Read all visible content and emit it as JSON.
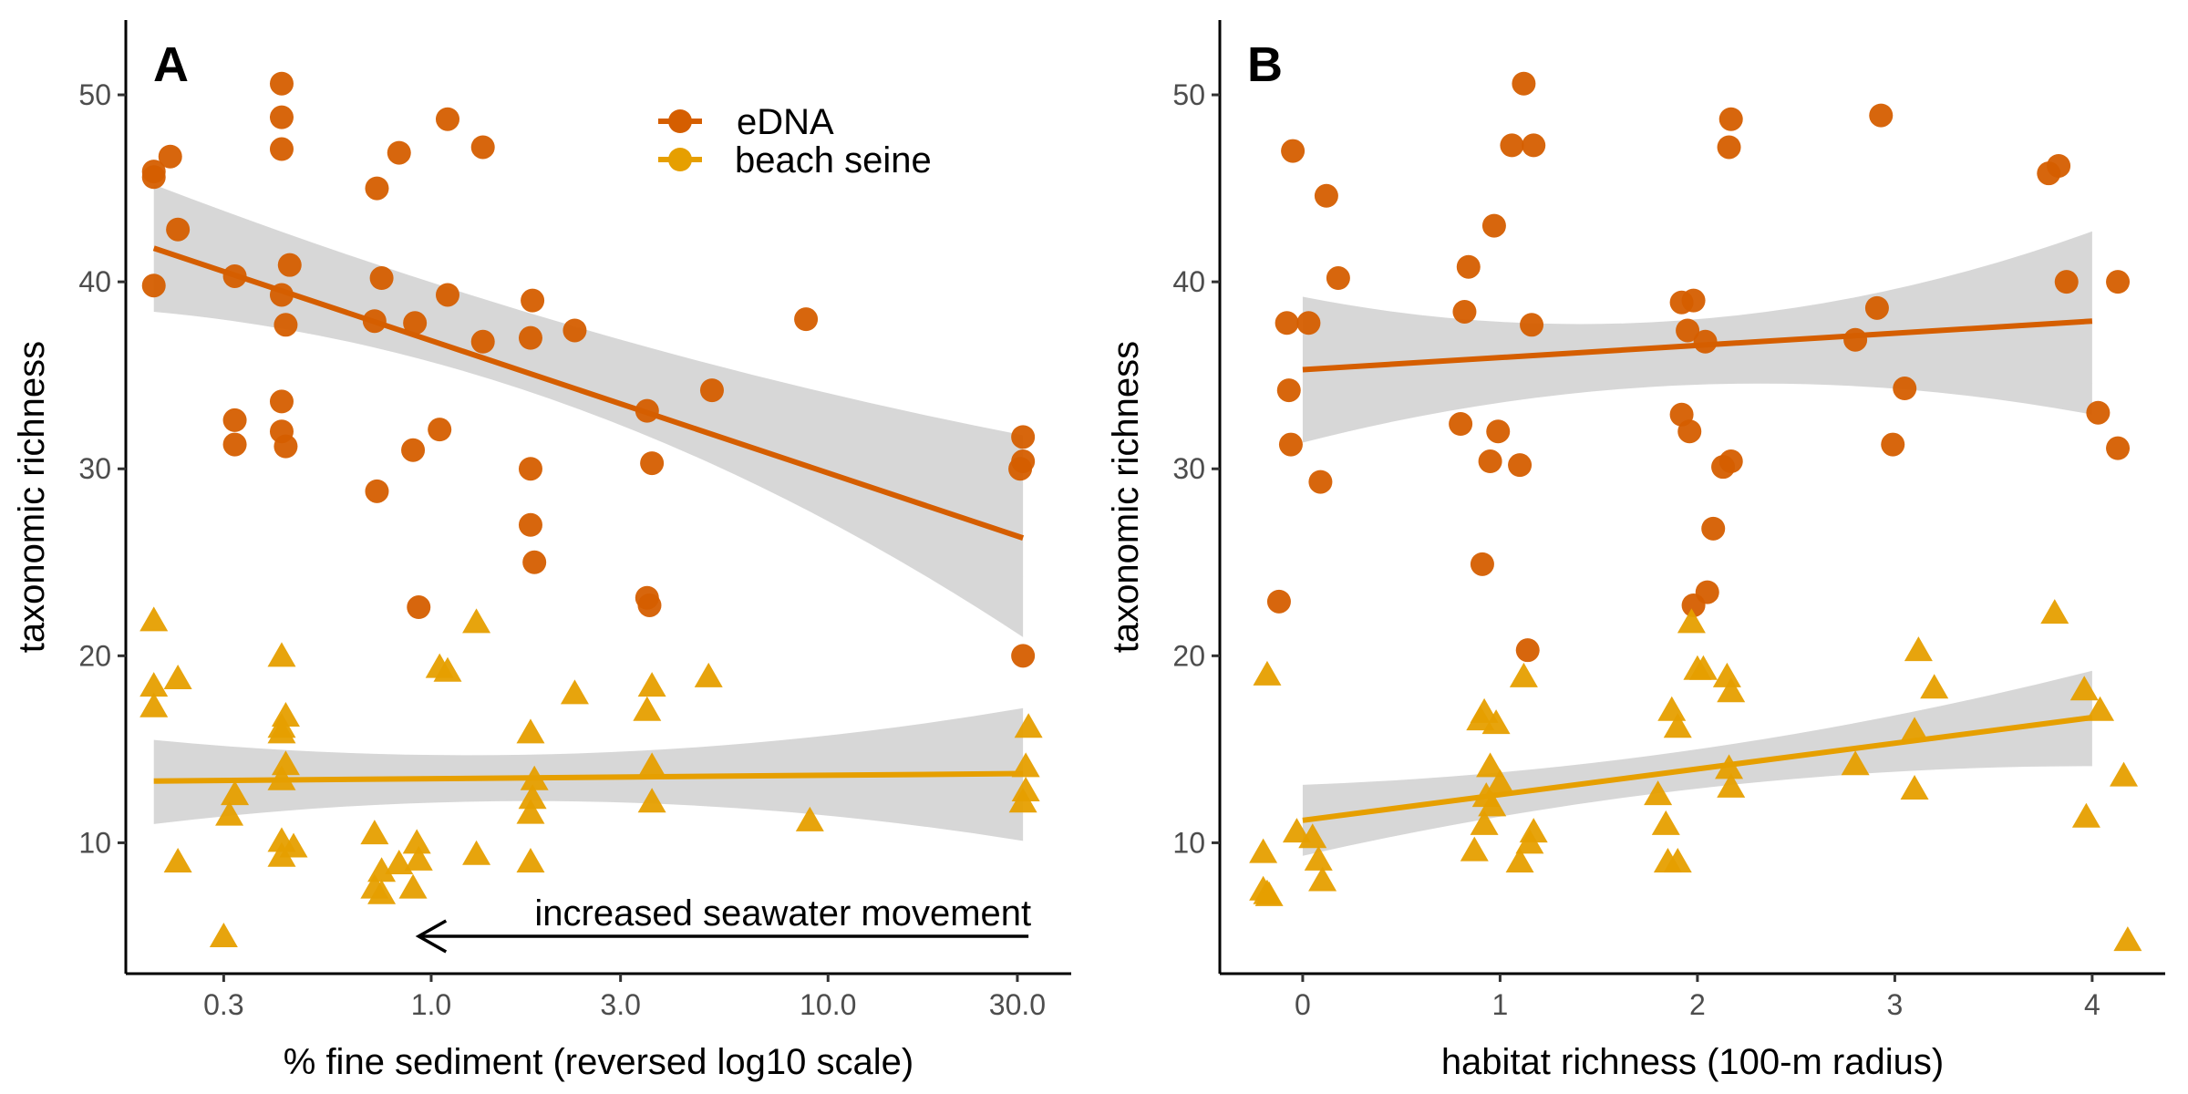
{
  "figure": {
    "colors": {
      "edna": "#D55E00",
      "seine": "#E69F00",
      "ribbon": "#BEBEBE",
      "axis": "#000000",
      "tick_text": "#4D4D4D"
    }
  },
  "legend": {
    "entries": [
      {
        "label": "eDNA",
        "series": "eDNA",
        "marker": "circle"
      },
      {
        "label": "beach seine",
        "series": "beach seine",
        "marker": "triangle"
      }
    ]
  },
  "chart_data": [
    {
      "type": "scatter",
      "panel_label": "A",
      "title": "",
      "xlabel": "% fine sediment (reversed log10 scale)",
      "ylabel": "taxonomic richness",
      "x_scale": "log10",
      "x_reversed_label": "reversed log10 scale",
      "xlim": [
        0.17,
        41
      ],
      "ylim": [
        3,
        54
      ],
      "x_ticks": [
        0.3,
        1.0,
        3.0,
        10.0,
        30.0
      ],
      "x_tick_labels": [
        "0.3",
        "1.0",
        "3.0",
        "10.0",
        "30.0"
      ],
      "y_ticks": [
        10,
        20,
        30,
        40,
        50
      ],
      "y_tick_labels": [
        "10",
        "20",
        "30",
        "40",
        "50"
      ],
      "grid": false,
      "legend_position": "top-center",
      "annotation": {
        "text": "increased seawater movement",
        "arrow_from_x": 32,
        "arrow_to_x": 0.93,
        "y": 5
      },
      "series": [
        {
          "name": "eDNA",
          "marker": "circle",
          "color": "#D55E00",
          "points": [
            [
              0.2,
              45.9
            ],
            [
              0.2,
              45.6
            ],
            [
              0.22,
              46.7
            ],
            [
              0.2,
              39.8
            ],
            [
              0.23,
              42.8
            ],
            [
              0.32,
              40.3
            ],
            [
              0.32,
              32.6
            ],
            [
              0.32,
              31.3
            ],
            [
              0.42,
              50.6
            ],
            [
              0.42,
              48.8
            ],
            [
              0.42,
              47.1
            ],
            [
              0.42,
              39.3
            ],
            [
              0.44,
              40.9
            ],
            [
              0.43,
              37.7
            ],
            [
              0.42,
              33.6
            ],
            [
              0.42,
              32.0
            ],
            [
              0.43,
              31.2
            ],
            [
              0.73,
              45.0
            ],
            [
              0.75,
              40.2
            ],
            [
              0.72,
              37.9
            ],
            [
              0.83,
              46.9
            ],
            [
              0.91,
              37.8
            ],
            [
              0.9,
              31.0
            ],
            [
              0.73,
              28.8
            ],
            [
              0.93,
              22.6
            ],
            [
              1.1,
              48.7
            ],
            [
              1.1,
              39.3
            ],
            [
              1.05,
              32.1
            ],
            [
              1.35,
              47.2
            ],
            [
              1.35,
              36.8
            ],
            [
              1.8,
              39.0
            ],
            [
              1.78,
              37.0
            ],
            [
              1.78,
              30.0
            ],
            [
              1.78,
              27.0
            ],
            [
              1.82,
              25.0
            ],
            [
              2.3,
              37.4
            ],
            [
              3.5,
              33.1
            ],
            [
              3.6,
              30.3
            ],
            [
              3.5,
              23.1
            ],
            [
              3.55,
              22.7
            ],
            [
              5.1,
              34.2
            ],
            [
              8.8,
              38.0
            ],
            [
              31.0,
              31.7
            ],
            [
              31.0,
              30.4
            ],
            [
              30.5,
              30.0
            ],
            [
              31.0,
              20.0
            ]
          ]
        },
        {
          "name": "beach seine",
          "marker": "triangle",
          "color": "#E69F00",
          "points": [
            [
              0.2,
              21.9
            ],
            [
              0.2,
              18.4
            ],
            [
              0.2,
              17.3
            ],
            [
              0.23,
              18.8
            ],
            [
              0.23,
              9.0
            ],
            [
              0.32,
              12.6
            ],
            [
              0.31,
              11.5
            ],
            [
              0.3,
              5.0
            ],
            [
              0.42,
              20.0
            ],
            [
              0.43,
              16.8
            ],
            [
              0.42,
              16.2
            ],
            [
              0.42,
              15.9
            ],
            [
              0.43,
              14.2
            ],
            [
              0.42,
              13.4
            ],
            [
              0.42,
              10.1
            ],
            [
              0.45,
              9.8
            ],
            [
              0.42,
              9.3
            ],
            [
              0.72,
              10.5
            ],
            [
              0.75,
              8.5
            ],
            [
              0.72,
              7.6
            ],
            [
              0.75,
              7.3
            ],
            [
              0.83,
              8.9
            ],
            [
              0.9,
              7.6
            ],
            [
              0.92,
              10.0
            ],
            [
              0.93,
              9.1
            ],
            [
              1.05,
              19.4
            ],
            [
              1.1,
              19.2
            ],
            [
              1.3,
              21.8
            ],
            [
              1.3,
              9.4
            ],
            [
              1.78,
              15.9
            ],
            [
              1.82,
              13.4
            ],
            [
              1.8,
              12.4
            ],
            [
              1.78,
              11.6
            ],
            [
              1.78,
              9.0
            ],
            [
              2.3,
              18.0
            ],
            [
              3.5,
              17.1
            ],
            [
              3.6,
              18.4
            ],
            [
              3.6,
              14.1
            ],
            [
              3.6,
              12.2
            ],
            [
              5.0,
              18.9
            ],
            [
              9.0,
              11.2
            ],
            [
              32.0,
              16.2
            ],
            [
              31.5,
              14.1
            ],
            [
              31.5,
              12.8
            ],
            [
              31.0,
              12.2
            ]
          ]
        }
      ],
      "fits": [
        {
          "series": "eDNA",
          "x_range": [
            0.2,
            31.0
          ],
          "y_range": [
            41.8,
            26.3
          ],
          "ci_at_start": [
            38.4,
            45.2
          ],
          "ci_at_mid": [
            33.0,
            37.4
          ],
          "ci_at_end": [
            21.0,
            31.8
          ]
        },
        {
          "series": "beach seine",
          "x_range": [
            0.2,
            31.0
          ],
          "y_range": [
            13.3,
            13.7
          ],
          "ci_at_start": [
            11.0,
            15.5
          ],
          "ci_at_mid": [
            12.2,
            14.8
          ],
          "ci_at_end": [
            10.1,
            17.2
          ]
        }
      ]
    },
    {
      "type": "scatter",
      "panel_label": "B",
      "title": "",
      "xlabel": "habitat richness (100-m radius)",
      "ylabel": "taxonomic richness",
      "x_scale": "linear",
      "xlim": [
        -0.42,
        4.37
      ],
      "ylim": [
        3,
        54
      ],
      "x_ticks": [
        0,
        1,
        2,
        3,
        4
      ],
      "x_tick_labels": [
        "0",
        "1",
        "2",
        "3",
        "4"
      ],
      "y_ticks": [
        10,
        20,
        30,
        40,
        50
      ],
      "y_tick_labels": [
        "10",
        "20",
        "30",
        "40",
        "50"
      ],
      "grid": false,
      "series": [
        {
          "name": "eDNA",
          "marker": "circle",
          "color": "#D55E00",
          "points": [
            [
              -0.05,
              47.0
            ],
            [
              0.12,
              44.6
            ],
            [
              0.18,
              40.2
            ],
            [
              -0.08,
              37.8
            ],
            [
              0.03,
              37.8
            ],
            [
              -0.07,
              34.2
            ],
            [
              -0.06,
              31.3
            ],
            [
              0.09,
              29.3
            ],
            [
              -0.12,
              22.9
            ],
            [
              0.84,
              40.8
            ],
            [
              0.97,
              43.0
            ],
            [
              1.06,
              47.3
            ],
            [
              1.12,
              50.6
            ],
            [
              1.17,
              47.3
            ],
            [
              0.82,
              38.4
            ],
            [
              1.16,
              37.7
            ],
            [
              0.8,
              32.4
            ],
            [
              0.99,
              32.0
            ],
            [
              0.95,
              30.4
            ],
            [
              1.1,
              30.2
            ],
            [
              0.91,
              24.9
            ],
            [
              1.14,
              20.3
            ],
            [
              1.92,
              38.9
            ],
            [
              1.98,
              39.0
            ],
            [
              1.95,
              37.4
            ],
            [
              2.04,
              36.8
            ],
            [
              1.92,
              32.9
            ],
            [
              1.96,
              32.0
            ],
            [
              2.17,
              30.4
            ],
            [
              2.13,
              30.1
            ],
            [
              2.08,
              26.8
            ],
            [
              2.05,
              23.4
            ],
            [
              1.98,
              22.7
            ],
            [
              2.16,
              47.2
            ],
            [
              2.17,
              48.7
            ],
            [
              2.93,
              48.9
            ],
            [
              2.91,
              38.6
            ],
            [
              2.8,
              36.9
            ],
            [
              3.05,
              34.3
            ],
            [
              2.99,
              31.3
            ],
            [
              3.78,
              45.8
            ],
            [
              3.83,
              46.2
            ],
            [
              3.87,
              40.0
            ],
            [
              4.13,
              40.0
            ],
            [
              4.03,
              33.0
            ],
            [
              4.13,
              31.1
            ]
          ]
        },
        {
          "name": "beach seine",
          "marker": "triangle",
          "color": "#E69F00",
          "points": [
            [
              -0.18,
              19.0
            ],
            [
              -0.2,
              9.5
            ],
            [
              -0.2,
              7.5
            ],
            [
              -0.18,
              7.3
            ],
            [
              -0.17,
              7.2
            ],
            [
              -0.03,
              10.6
            ],
            [
              0.05,
              10.3
            ],
            [
              0.08,
              9.1
            ],
            [
              0.1,
              8.0
            ],
            [
              0.92,
              17.0
            ],
            [
              0.9,
              16.6
            ],
            [
              0.98,
              16.4
            ],
            [
              0.95,
              14.1
            ],
            [
              1.0,
              13.2
            ],
            [
              0.93,
              12.5
            ],
            [
              0.96,
              12.0
            ],
            [
              0.92,
              11.0
            ],
            [
              0.87,
              9.6
            ],
            [
              1.1,
              9.0
            ],
            [
              1.17,
              10.6
            ],
            [
              1.15,
              10.0
            ],
            [
              1.12,
              18.9
            ],
            [
              1.97,
              21.8
            ],
            [
              2.0,
              19.3
            ],
            [
              2.03,
              19.3
            ],
            [
              1.87,
              17.1
            ],
            [
              1.9,
              16.2
            ],
            [
              2.15,
              18.9
            ],
            [
              2.17,
              18.1
            ],
            [
              2.16,
              14.0
            ],
            [
              2.17,
              13.0
            ],
            [
              1.8,
              12.6
            ],
            [
              1.84,
              11.0
            ],
            [
              1.85,
              9.0
            ],
            [
              1.9,
              9.0
            ],
            [
              2.8,
              14.2
            ],
            [
              3.12,
              20.3
            ],
            [
              3.1,
              16.0
            ],
            [
              3.2,
              18.3
            ],
            [
              3.1,
              12.9
            ],
            [
              3.81,
              22.3
            ],
            [
              3.96,
              18.2
            ],
            [
              4.04,
              17.1
            ],
            [
              3.97,
              11.4
            ],
            [
              4.16,
              13.6
            ],
            [
              4.18,
              4.8
            ]
          ]
        }
      ],
      "fits": [
        {
          "series": "eDNA",
          "x_range": [
            0.0,
            4.0
          ],
          "y_range": [
            35.3,
            37.9
          ],
          "ci_at_start": [
            31.4,
            39.2
          ],
          "ci_at_mid": [
            34.5,
            38.0
          ],
          "ci_at_end": [
            32.9,
            42.7
          ]
        },
        {
          "series": "beach seine",
          "x_range": [
            0.0,
            4.0
          ],
          "y_range": [
            11.2,
            16.7
          ],
          "ci_at_start": [
            9.3,
            13.1
          ],
          "ci_at_mid": [
            12.9,
            15.0
          ],
          "ci_at_end": [
            14.1,
            19.2
          ]
        }
      ]
    }
  ]
}
